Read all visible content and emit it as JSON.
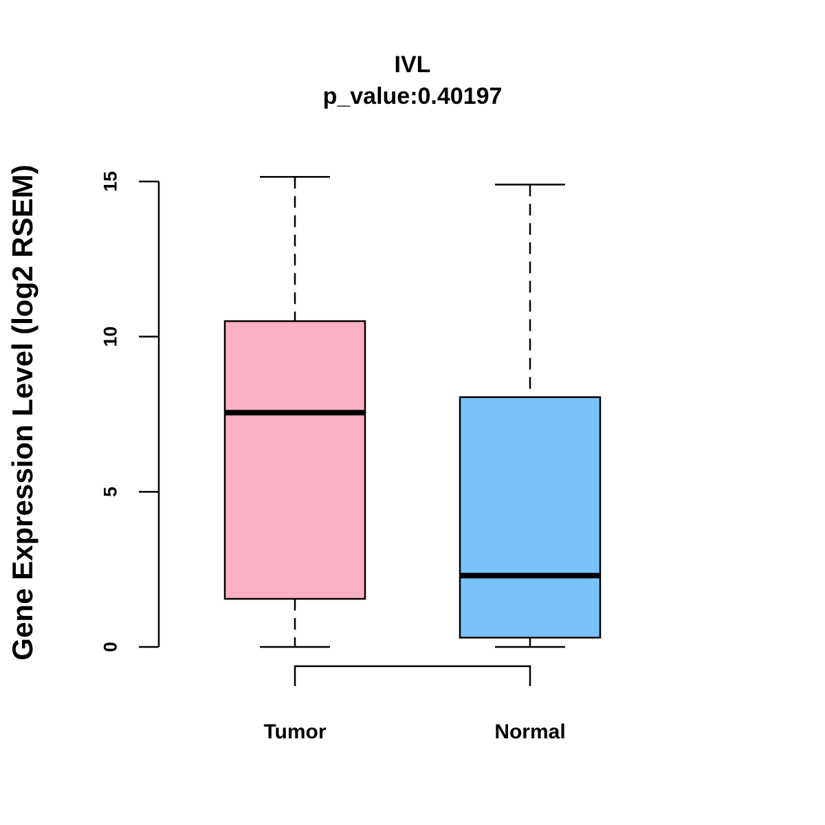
{
  "chart_data": {
    "type": "boxplot",
    "title": "IVL",
    "subtitle": "p_value:0.40197",
    "xlabel": "",
    "ylabel": "Gene Expression Level (log2 RSEM)",
    "ylim": [
      0,
      15
    ],
    "yticks": [
      "0",
      "5",
      "10",
      "15"
    ],
    "grid": false,
    "categories": [
      "Tumor",
      "Normal"
    ],
    "boxes": [
      {
        "name": "Tumor",
        "min": 0.0,
        "q1": 1.55,
        "median": 7.55,
        "q3": 10.5,
        "max": 15.15,
        "color": "#FBB0C3"
      },
      {
        "name": "Normal",
        "min": 0.0,
        "q1": 0.3,
        "median": 2.3,
        "q3": 8.05,
        "max": 14.9,
        "color": "#78C1F9"
      }
    ],
    "comparison_bracket": [
      "Tumor",
      "Normal"
    ]
  }
}
